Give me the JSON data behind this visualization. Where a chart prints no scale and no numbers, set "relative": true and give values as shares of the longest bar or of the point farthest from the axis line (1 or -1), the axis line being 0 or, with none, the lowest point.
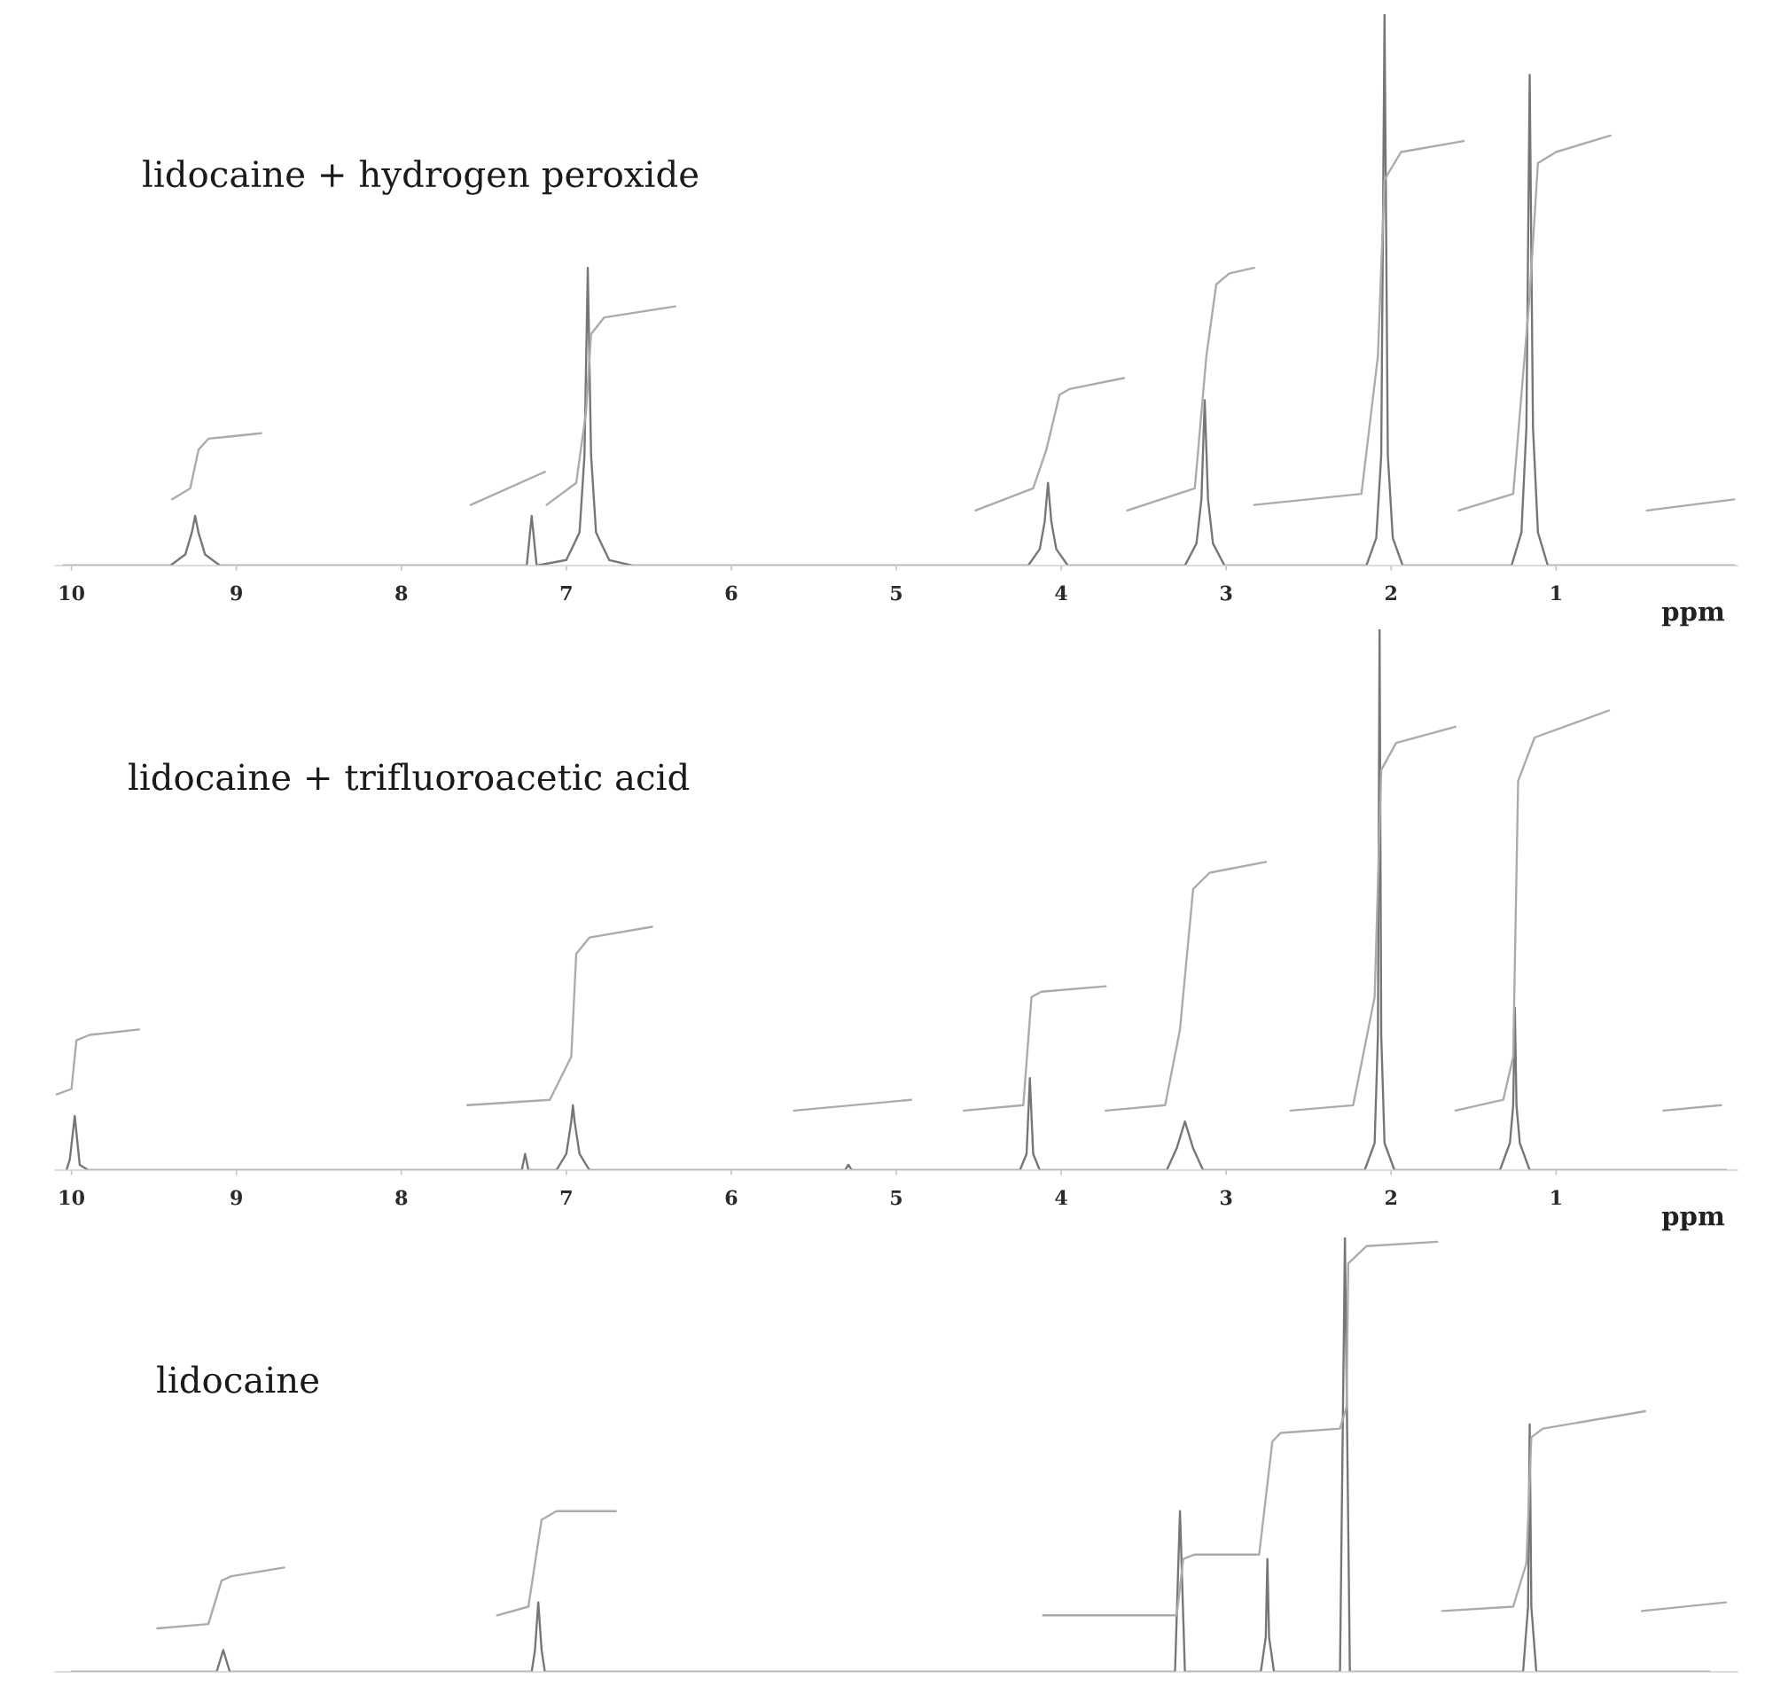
{
  "chart_data": [
    {
      "type": "line",
      "title": "lidocaine + hydrogen peroxide",
      "xlabel": "ppm",
      "relative": true,
      "tick_labels": "x",
      "xlim": [
        10.1,
        -0.1
      ],
      "xticks": [
        10,
        9,
        8,
        7,
        6,
        5,
        4,
        3,
        2,
        1
      ],
      "series": [
        {
          "color": "#767676",
          "x": [
            10.05,
            9.4,
            9.31,
            9.27,
            9.25,
            9.23,
            9.19,
            9.1,
            7.24,
            7.21,
            7.18,
            7.0,
            6.92,
            6.89,
            6.87,
            6.85,
            6.82,
            6.74,
            6.6,
            4.2,
            4.13,
            4.1,
            4.08,
            4.06,
            4.03,
            3.96,
            3.25,
            3.18,
            3.15,
            3.13,
            3.11,
            3.08,
            3.01,
            2.15,
            2.09,
            2.06,
            2.04,
            2.02,
            1.99,
            1.93,
            1.27,
            1.21,
            1.18,
            1.16,
            1.14,
            1.11,
            1.05,
            -0.08
          ],
          "values": [
            0,
            0,
            0.02,
            0.06,
            0.09,
            0.06,
            0.02,
            0,
            0,
            0.09,
            0,
            0.01,
            0.06,
            0.2,
            0.54,
            0.2,
            0.06,
            0.01,
            0,
            0,
            0.03,
            0.08,
            0.15,
            0.08,
            0.03,
            0,
            0,
            0.04,
            0.12,
            0.3,
            0.12,
            0.04,
            0,
            0,
            0.05,
            0.2,
            1.0,
            0.2,
            0.05,
            0,
            0,
            0.06,
            0.25,
            0.89,
            0.25,
            0.06,
            0,
            0
          ]
        },
        {
          "color": "#ababab",
          "x": [
            9.39,
            9.28,
            9.23,
            9.17,
            8.85
          ],
          "values": [
            0.12,
            0.14,
            0.21,
            0.23,
            0.24
          ]
        },
        {
          "color": "#ababab",
          "x": [
            7.58,
            7.13
          ],
          "values": [
            0.11,
            0.17
          ]
        },
        {
          "color": "#ababab",
          "x": [
            7.12,
            6.94,
            6.88,
            6.85,
            6.77,
            6.34
          ],
          "values": [
            0.11,
            0.15,
            0.28,
            0.42,
            0.45,
            0.47
          ]
        },
        {
          "color": "#ababab",
          "x": [
            4.52,
            4.17,
            4.09,
            4.01,
            3.95,
            3.62
          ],
          "values": [
            0.1,
            0.14,
            0.21,
            0.31,
            0.32,
            0.34
          ]
        },
        {
          "color": "#ababab",
          "x": [
            3.6,
            3.19,
            3.12,
            3.06,
            2.98,
            2.83
          ],
          "values": [
            0.1,
            0.14,
            0.38,
            0.51,
            0.53,
            0.54
          ]
        },
        {
          "color": "#ababab",
          "x": [
            2.83,
            2.18,
            2.08,
            2.04,
            1.94,
            1.56
          ],
          "values": [
            0.11,
            0.13,
            0.38,
            0.7,
            0.75,
            0.77
          ]
        },
        {
          "color": "#ababab",
          "x": [
            1.59,
            1.26,
            1.16,
            1.11,
            1.0,
            0.67
          ],
          "values": [
            0.1,
            0.13,
            0.49,
            0.73,
            0.75,
            0.78
          ]
        },
        {
          "color": "#ababab",
          "x": [
            0.45,
            -0.08
          ],
          "values": [
            0.1,
            0.12
          ]
        }
      ]
    },
    {
      "type": "line",
      "title": "lidocaine + trifluoroacetic acid",
      "xlabel": "ppm",
      "relative": true,
      "tick_labels": "x",
      "xlim": [
        10.1,
        -0.1
      ],
      "xticks": [
        10,
        9,
        8,
        7,
        6,
        5,
        4,
        3,
        2,
        1
      ],
      "series": [
        {
          "color": "#767676",
          "x": [
            10.03,
            10.01,
            9.98,
            9.95,
            9.9,
            7.27,
            7.25,
            7.23,
            7.06,
            7.0,
            6.97,
            6.96,
            6.95,
            6.92,
            6.86,
            5.31,
            5.29,
            5.27,
            4.25,
            4.21,
            4.19,
            4.17,
            4.13,
            3.36,
            3.3,
            3.25,
            3.2,
            3.14,
            2.16,
            2.1,
            2.08,
            2.07,
            2.06,
            2.04,
            1.98,
            1.34,
            1.28,
            1.26,
            1.25,
            1.24,
            1.22,
            1.16,
            -0.03
          ],
          "values": [
            0,
            0.02,
            0.1,
            0.01,
            0,
            0,
            0.03,
            0,
            0,
            0.03,
            0.09,
            0.12,
            0.09,
            0.03,
            0,
            0,
            0.01,
            0,
            0,
            0.03,
            0.17,
            0.03,
            0,
            0,
            0.04,
            0.09,
            0.04,
            0,
            0,
            0.05,
            0.25,
            1.0,
            0.25,
            0.05,
            0,
            0,
            0.05,
            0.12,
            0.3,
            0.12,
            0.05,
            0,
            0
          ]
        },
        {
          "color": "#ababab",
          "x": [
            10.09,
            10.0,
            9.97,
            9.89,
            9.59
          ],
          "values": [
            0.14,
            0.15,
            0.24,
            0.25,
            0.26
          ]
        },
        {
          "color": "#ababab",
          "x": [
            7.6,
            7.1,
            6.97,
            6.94,
            6.86,
            6.48
          ],
          "values": [
            0.12,
            0.13,
            0.21,
            0.4,
            0.43,
            0.45
          ]
        },
        {
          "color": "#ababab",
          "x": [
            5.62,
            4.91
          ],
          "values": [
            0.11,
            0.13
          ]
        },
        {
          "color": "#ababab",
          "x": [
            4.59,
            4.23,
            4.18,
            4.12,
            3.73
          ],
          "values": [
            0.11,
            0.12,
            0.32,
            0.33,
            0.34
          ]
        },
        {
          "color": "#ababab",
          "x": [
            3.73,
            3.37,
            3.28,
            3.2,
            3.1,
            2.76
          ],
          "values": [
            0.11,
            0.12,
            0.26,
            0.52,
            0.55,
            0.57
          ]
        },
        {
          "color": "#ababab",
          "x": [
            2.61,
            2.23,
            2.1,
            2.06,
            1.97,
            1.61
          ],
          "values": [
            0.11,
            0.12,
            0.32,
            0.74,
            0.79,
            0.82
          ]
        },
        {
          "color": "#ababab",
          "x": [
            1.61,
            1.32,
            1.26,
            1.23,
            1.13,
            0.68
          ],
          "values": [
            0.11,
            0.13,
            0.21,
            0.72,
            0.8,
            0.85
          ]
        },
        {
          "color": "#ababab",
          "x": [
            0.35,
            0.0
          ],
          "values": [
            0.11,
            0.12
          ]
        }
      ]
    },
    {
      "type": "line",
      "title": "lidocaine",
      "relative": true,
      "tick_labels": false,
      "xlim": [
        10.1,
        -0.1
      ],
      "series": [
        {
          "color": "#767676",
          "x": [
            10.0,
            9.12,
            9.08,
            9.04,
            7.21,
            7.19,
            7.17,
            7.15,
            7.13,
            3.31,
            3.28,
            3.25,
            2.79,
            2.76,
            2.75,
            2.74,
            2.71,
            2.31,
            2.28,
            2.25,
            1.2,
            1.17,
            1.16,
            1.15,
            1.12,
            0.07
          ],
          "values": [
            0,
            0,
            0.05,
            0,
            0,
            0.05,
            0.16,
            0.05,
            0,
            0,
            0.37,
            0,
            0,
            0.08,
            0.26,
            0.08,
            0,
            0,
            1.0,
            0,
            0,
            0.15,
            0.57,
            0.15,
            0,
            0
          ]
        },
        {
          "color": "#ababab",
          "x": [
            9.48,
            9.17,
            9.09,
            9.03,
            8.71
          ],
          "values": [
            0.1,
            0.11,
            0.21,
            0.22,
            0.24
          ]
        },
        {
          "color": "#ababab",
          "x": [
            7.42,
            7.23,
            7.17,
            7.15,
            7.06,
            6.7
          ],
          "values": [
            0.13,
            0.15,
            0.3,
            0.35,
            0.37,
            0.37
          ]
        },
        {
          "color": "#ababab",
          "x": [
            4.11,
            3.3,
            3.26,
            3.19,
            2.8,
            2.72,
            2.67,
            2.31,
            2.27,
            2.26,
            2.15,
            1.72
          ],
          "values": [
            0.13,
            0.13,
            0.26,
            0.27,
            0.27,
            0.53,
            0.55,
            0.56,
            0.61,
            0.94,
            0.98,
            0.99
          ]
        },
        {
          "color": "#ababab",
          "x": [
            1.69,
            1.26,
            1.18,
            1.15,
            1.08,
            0.46
          ],
          "values": [
            0.14,
            0.15,
            0.25,
            0.54,
            0.56,
            0.6
          ]
        },
        {
          "color": "#ababab",
          "x": [
            0.48,
            -0.03
          ],
          "values": [
            0.14,
            0.16
          ]
        }
      ]
    }
  ]
}
